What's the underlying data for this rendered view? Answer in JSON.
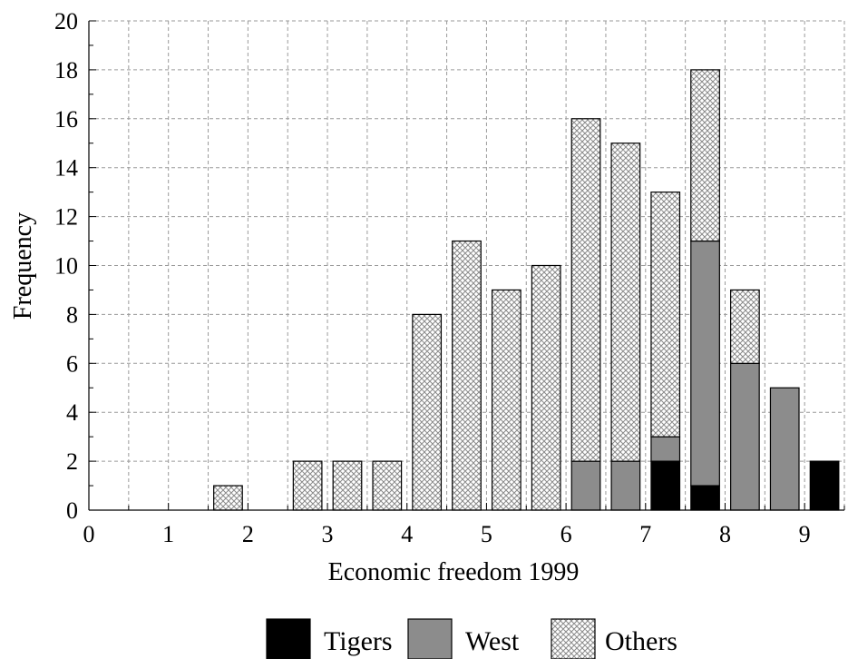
{
  "chart_data": {
    "type": "bar",
    "stacked": true,
    "xlabel": "Economic freedom 1999",
    "ylabel": "Frequency",
    "xlim": [
      0,
      9.5
    ],
    "ylim": [
      0,
      20
    ],
    "x_ticks": [
      "0",
      "1",
      "2",
      "3",
      "4",
      "5",
      "6",
      "7",
      "8",
      "9"
    ],
    "y_ticks": [
      "0",
      "2",
      "4",
      "6",
      "8",
      "10",
      "12",
      "14",
      "16",
      "18",
      "20"
    ],
    "grid": true,
    "legend_position": "bottom",
    "bin_width": 0.5,
    "x": [
      1.75,
      2.25,
      2.75,
      3.25,
      3.75,
      4.25,
      4.75,
      5.25,
      5.75,
      6.25,
      6.75,
      7.25,
      7.75,
      8.25,
      8.75,
      9.25
    ],
    "series": [
      {
        "name": "Tigers",
        "color": "#000000",
        "pattern": "solid",
        "values": [
          0,
          0,
          0,
          0,
          0,
          0,
          0,
          0,
          0,
          0,
          0,
          2,
          1,
          0,
          0,
          2
        ]
      },
      {
        "name": "West",
        "color": "#8c8c8c",
        "pattern": "solid",
        "values": [
          0,
          0,
          0,
          0,
          0,
          0,
          0,
          0,
          0,
          2,
          2,
          1,
          10,
          6,
          5,
          0
        ]
      },
      {
        "name": "Others",
        "color": "#cccccc",
        "pattern": "crosshatch",
        "values": [
          1,
          0,
          2,
          2,
          2,
          8,
          11,
          9,
          10,
          14,
          13,
          10,
          7,
          3,
          0,
          0
        ]
      }
    ]
  }
}
